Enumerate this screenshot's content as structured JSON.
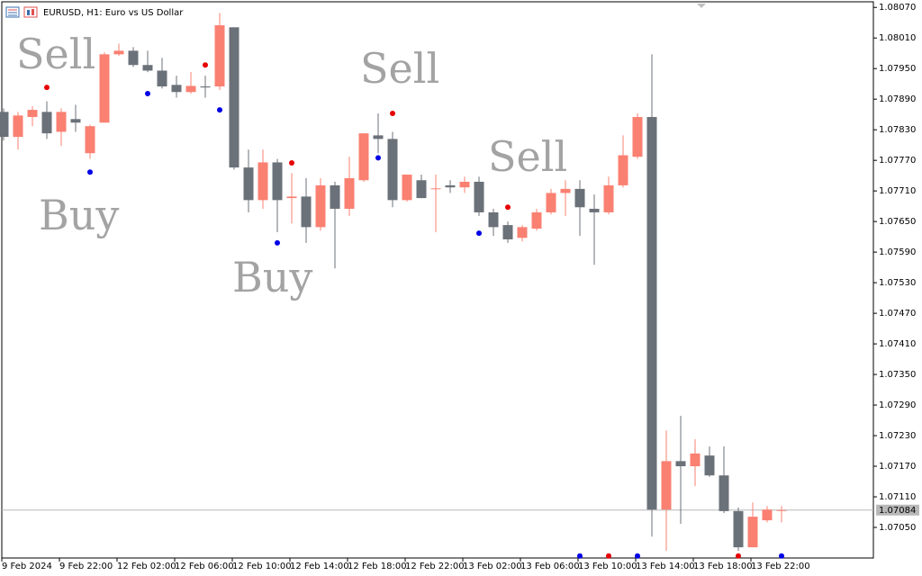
{
  "chart_data": {
    "type": "candlestick",
    "title": "EURUSD, H1: Euro vs US Dollar",
    "categories": [
      "9 Feb 2024",
      null,
      null,
      null,
      "9 Feb 22:00",
      null,
      null,
      null,
      "12 Feb 02:00",
      null,
      null,
      null,
      "12 Feb 06:00",
      null,
      null,
      null,
      "12 Feb 10:00",
      null,
      null,
      null,
      "12 Feb 14:00",
      null,
      null,
      null,
      "12 Feb 18:00",
      null,
      null,
      null,
      "12 Feb 22:00",
      null,
      null,
      null,
      "13 Feb 02:00",
      null,
      null,
      null,
      "13 Feb 06:00",
      null,
      null,
      null,
      "13 Feb 10:00",
      null,
      null,
      null,
      "13 Feb 14:00",
      null,
      null,
      null,
      "13 Feb 18:00",
      null,
      null,
      null,
      "13 Feb 22:00",
      null,
      null
    ],
    "open": [
      1.07865,
      1.07816,
      1.07855,
      1.07865,
      1.07826,
      1.07851,
      1.07784,
      1.07844,
      1.07978,
      1.07985,
      1.07957,
      1.07946,
      1.07918,
      1.07904,
      1.07915,
      1.07915,
      1.08031,
      1.07756,
      1.07692,
      1.07766,
      1.07696,
      1.07699,
      1.07639,
      1.07721,
      1.07675,
      1.07731,
      1.07819,
      1.07812,
      1.07692,
      1.07731,
      1.07714,
      1.07721,
      1.07717,
      1.07728,
      1.07668,
      1.07643,
      1.07618,
      1.07636,
      1.07668,
      1.07706,
      1.07714,
      1.07675,
      1.07668,
      1.07721,
      1.07777,
      1.07855,
      1.07085,
      1.0718,
      1.0717,
      1.07191,
      1.07152,
      1.07082,
      1.07011,
      1.07064,
      1.07083
    ],
    "high": [
      1.07872,
      1.07865,
      1.07876,
      1.07886,
      1.07872,
      1.07879,
      1.0784,
      1.07982,
      1.07999,
      1.07992,
      1.07985,
      1.07971,
      1.07936,
      1.07943,
      1.07936,
      1.08059,
      1.08031,
      1.07791,
      1.07791,
      1.07773,
      1.07745,
      1.07735,
      1.07735,
      1.07728,
      1.07777,
      1.07823,
      1.07862,
      1.07826,
      1.07742,
      1.07742,
      1.07742,
      1.07731,
      1.07738,
      1.07738,
      1.07675,
      1.0765,
      1.07643,
      1.07675,
      1.07714,
      1.07731,
      1.07731,
      1.07703,
      1.07738,
      1.07819,
      1.07862,
      1.07978,
      1.0724,
      1.07269,
      1.07223,
      1.07209,
      1.07209,
      1.07089,
      1.07099,
      1.07092,
      1.07092
    ],
    "low": [
      1.07809,
      1.07791,
      1.07837,
      1.07812,
      1.07798,
      1.07826,
      1.07773,
      1.07844,
      1.07975,
      1.07953,
      1.07943,
      1.07911,
      1.07893,
      1.07901,
      1.07893,
      1.07908,
      1.07752,
      1.07668,
      1.07675,
      1.07629,
      1.07646,
      1.07608,
      1.07632,
      1.07558,
      1.07661,
      1.07728,
      1.07784,
      1.07678,
      1.07689,
      1.07696,
      1.07629,
      1.07706,
      1.07706,
      1.07661,
      1.07622,
      1.07608,
      1.07611,
      1.07632,
      1.07664,
      1.07661,
      1.07622,
      1.07565,
      1.07664,
      1.07717,
      1.07773,
      1.07032,
      1.07004,
      1.07057,
      1.07131,
      1.07149,
      1.07078,
      1.07004,
      1.07011,
      1.0706,
      1.0706
    ],
    "close": [
      1.07816,
      1.07858,
      1.07869,
      1.07823,
      1.07865,
      1.07844,
      1.07837,
      1.07978,
      1.07985,
      1.07957,
      1.07946,
      1.07915,
      1.07904,
      1.07916,
      1.07913,
      1.08035,
      1.07756,
      1.07692,
      1.07766,
      1.07692,
      1.07699,
      1.07639,
      1.07721,
      1.07675,
      1.07735,
      1.07823,
      1.07812,
      1.07692,
      1.07742,
      1.07696,
      1.07715,
      1.07717,
      1.07728,
      1.07668,
      1.07639,
      1.07615,
      1.07639,
      1.07668,
      1.07706,
      1.07714,
      1.07678,
      1.07668,
      1.07721,
      1.0778,
      1.07855,
      1.07085,
      1.0718,
      1.0717,
      1.07195,
      1.07152,
      1.07082,
      1.07011,
      1.07071,
      1.07085,
      1.07084
    ],
    "up_color": "#fa8072",
    "down_color": "#6b7179",
    "markers": [
      {
        "color": "#e60000",
        "values": [
          null,
          null,
          null,
          1.07913,
          null,
          null,
          null,
          null,
          null,
          null,
          null,
          null,
          null,
          null,
          1.07957,
          null,
          null,
          null,
          null,
          null,
          1.07765,
          null,
          null,
          null,
          null,
          null,
          null,
          1.07862,
          null,
          null,
          null,
          null,
          null,
          null,
          null,
          1.07678,
          null,
          null,
          null,
          null,
          null,
          null,
          1.06994,
          null,
          null,
          null,
          null,
          null,
          null,
          null,
          null,
          1.06994,
          null,
          null,
          null
        ]
      },
      {
        "color": "#0000e6",
        "values": [
          null,
          null,
          null,
          null,
          null,
          null,
          1.07747,
          null,
          null,
          null,
          1.07901,
          null,
          null,
          null,
          null,
          1.07869,
          null,
          null,
          null,
          1.07608,
          null,
          null,
          null,
          null,
          null,
          null,
          1.07775,
          null,
          null,
          null,
          null,
          null,
          null,
          1.07627,
          null,
          null,
          null,
          null,
          null,
          null,
          1.06994,
          null,
          null,
          null,
          1.06994,
          null,
          null,
          null,
          null,
          null,
          null,
          null,
          null,
          null,
          1.06994
        ]
      }
    ],
    "annotations": [
      "Sell",
      "Sell",
      "Sell",
      "Buy",
      "Buy"
    ],
    "last_price": 1.07084,
    "ylim": [
      1.0699,
      1.08081
    ],
    "yticks": [
      {
        "value": 1.0807,
        "label": "1.08070"
      },
      {
        "value": 1.0801,
        "label": "1.08010"
      },
      {
        "value": 1.0795,
        "label": "1.07950"
      },
      {
        "value": 1.0789,
        "label": "1.07890"
      },
      {
        "value": 1.0783,
        "label": "1.07830"
      },
      {
        "value": 1.0777,
        "label": "1.07770"
      },
      {
        "value": 1.0771,
        "label": "1.07710"
      },
      {
        "value": 1.0765,
        "label": "1.07650"
      },
      {
        "value": 1.0759,
        "label": "1.07590"
      },
      {
        "value": 1.0753,
        "label": "1.07530"
      },
      {
        "value": 1.0747,
        "label": "1.07470"
      },
      {
        "value": 1.0741,
        "label": "1.07410"
      },
      {
        "value": 1.0735,
        "label": "1.07350"
      },
      {
        "value": 1.0729,
        "label": "1.07290"
      },
      {
        "value": 1.0723,
        "label": "1.07230"
      },
      {
        "value": 1.0717,
        "label": "1.07170"
      },
      {
        "value": 1.0711,
        "label": "1.07110"
      },
      {
        "value": 1.0705,
        "label": "1.07050"
      }
    ],
    "grid": false
  }
}
